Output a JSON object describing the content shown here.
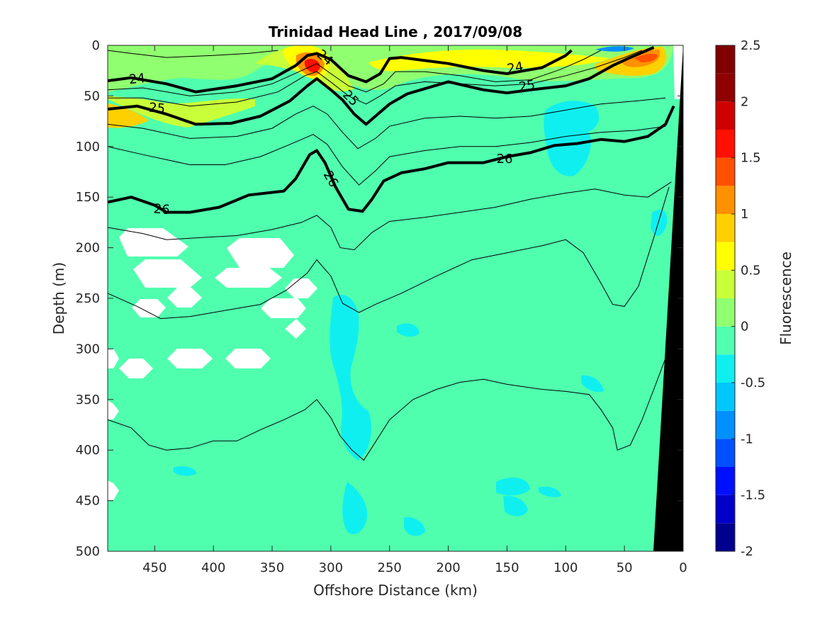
{
  "chart_data": {
    "type": "contour",
    "title": "Trinidad Head Line , 2017/09/08",
    "xlabel": "Offshore Distance (km)",
    "ylabel": "Depth (m)",
    "xlim": [
      490,
      0
    ],
    "ylim": [
      0,
      500
    ],
    "x_ticks": [
      "450",
      "400",
      "350",
      "300",
      "250",
      "200",
      "150",
      "100",
      "50",
      "0"
    ],
    "x_tick_values": [
      450,
      400,
      350,
      300,
      250,
      200,
      150,
      100,
      50,
      0
    ],
    "y_ticks": [
      "0",
      "50",
      "100",
      "150",
      "200",
      "250",
      "300",
      "350",
      "400",
      "450",
      "500"
    ],
    "y_tick_values": [
      0,
      50,
      100,
      150,
      200,
      250,
      300,
      350,
      400,
      450,
      500
    ],
    "colorbar": {
      "label": "Fluorescence",
      "tick_labels": [
        "2.5",
        "2",
        "1.5",
        "1",
        "0.5",
        "0",
        "-0.5",
        "-1",
        "-1.5",
        "-2"
      ],
      "tick_values": [
        2.5,
        2,
        1.5,
        1,
        0.5,
        0,
        -0.5,
        -1,
        -1.5,
        -2
      ],
      "levels": [
        -2,
        -1.75,
        -1.5,
        -1.25,
        -1,
        -0.75,
        -0.5,
        -0.25,
        0,
        0.25,
        0.5,
        0.75,
        1,
        1.25,
        1.5,
        1.75,
        2,
        2.25,
        2.5
      ],
      "colors": [
        "#00008f",
        "#0000c8",
        "#0010ff",
        "#0050ff",
        "#0090ff",
        "#00c8ff",
        "#10efef",
        "#50ffaf",
        "#90ff70",
        "#c8ff38",
        "#ffff00",
        "#ffd000",
        "#ff9000",
        "#ff5000",
        "#ff1000",
        "#d00000",
        "#900000",
        "#800000"
      ]
    },
    "background_level_color": "#4fffae",
    "isopycnals": [
      {
        "label": "24",
        "bold": true,
        "points": [
          [
            490,
            35
          ],
          [
            470,
            32
          ],
          [
            440,
            38
          ],
          [
            415,
            46
          ],
          [
            380,
            40
          ],
          [
            350,
            33
          ],
          [
            330,
            20
          ],
          [
            320,
            10
          ],
          [
            312,
            8
          ],
          [
            300,
            14
          ],
          [
            285,
            30
          ],
          [
            270,
            36
          ],
          [
            258,
            28
          ],
          [
            250,
            13
          ],
          [
            240,
            12
          ],
          [
            200,
            18
          ],
          [
            170,
            25
          ],
          [
            150,
            28
          ],
          [
            120,
            22
          ],
          [
            100,
            10
          ],
          [
            95,
            5
          ]
        ]
      },
      {
        "label": "25",
        "bold": true,
        "points": [
          [
            490,
            63
          ],
          [
            465,
            60
          ],
          [
            440,
            68
          ],
          [
            415,
            78
          ],
          [
            385,
            77
          ],
          [
            360,
            70
          ],
          [
            335,
            55
          ],
          [
            320,
            40
          ],
          [
            312,
            33
          ],
          [
            300,
            44
          ],
          [
            290,
            54
          ],
          [
            280,
            68
          ],
          [
            270,
            78
          ],
          [
            260,
            68
          ],
          [
            250,
            58
          ],
          [
            235,
            48
          ],
          [
            200,
            36
          ],
          [
            170,
            44
          ],
          [
            150,
            47
          ],
          [
            130,
            44
          ],
          [
            100,
            40
          ],
          [
            80,
            33
          ],
          [
            60,
            20
          ],
          [
            45,
            12
          ],
          [
            25,
            2
          ]
        ]
      },
      {
        "label": "26",
        "bold": true,
        "points": [
          [
            490,
            155
          ],
          [
            470,
            150
          ],
          [
            450,
            158
          ],
          [
            440,
            165
          ],
          [
            420,
            165
          ],
          [
            395,
            160
          ],
          [
            370,
            148
          ],
          [
            340,
            144
          ],
          [
            330,
            132
          ],
          [
            318,
            108
          ],
          [
            312,
            104
          ],
          [
            305,
            116
          ],
          [
            296,
            140
          ],
          [
            285,
            162
          ],
          [
            273,
            164
          ],
          [
            265,
            152
          ],
          [
            255,
            134
          ],
          [
            240,
            126
          ],
          [
            220,
            122
          ],
          [
            200,
            116
          ],
          [
            170,
            116
          ],
          [
            150,
            110
          ],
          [
            130,
            106
          ],
          [
            110,
            99
          ],
          [
            90,
            97
          ],
          [
            70,
            93
          ],
          [
            50,
            95
          ],
          [
            30,
            90
          ],
          [
            15,
            78
          ],
          [
            8,
            60
          ]
        ]
      }
    ],
    "thin_isopycnals": [
      [
        [
          490,
          5
        ],
        [
          470,
          8
        ],
        [
          440,
          12
        ],
        [
          400,
          10
        ],
        [
          370,
          8
        ],
        [
          345,
          5
        ]
      ],
      [
        [
          490,
          44
        ],
        [
          460,
          42
        ],
        [
          420,
          50
        ],
        [
          380,
          46
        ],
        [
          350,
          38
        ],
        [
          325,
          25
        ],
        [
          312,
          18
        ],
        [
          300,
          28
        ],
        [
          285,
          40
        ],
        [
          270,
          46
        ],
        [
          255,
          38
        ],
        [
          245,
          26
        ],
        [
          220,
          26
        ],
        [
          190,
          30
        ],
        [
          160,
          36
        ],
        [
          130,
          34
        ],
        [
          105,
          24
        ],
        [
          85,
          14
        ],
        [
          70,
          5
        ]
      ],
      [
        [
          490,
          52
        ],
        [
          460,
          52
        ],
        [
          420,
          60
        ],
        [
          380,
          56
        ],
        [
          345,
          46
        ],
        [
          322,
          30
        ],
        [
          312,
          26
        ],
        [
          298,
          38
        ],
        [
          285,
          50
        ],
        [
          270,
          58
        ],
        [
          258,
          50
        ],
        [
          245,
          40
        ],
        [
          220,
          36
        ],
        [
          190,
          38
        ],
        [
          160,
          40
        ],
        [
          130,
          38
        ],
        [
          100,
          30
        ],
        [
          75,
          22
        ],
        [
          50,
          12
        ],
        [
          35,
          5
        ]
      ],
      [
        [
          490,
          78
        ],
        [
          460,
          82
        ],
        [
          420,
          92
        ],
        [
          380,
          90
        ],
        [
          350,
          82
        ],
        [
          330,
          68
        ],
        [
          315,
          60
        ],
        [
          303,
          68
        ],
        [
          290,
          86
        ],
        [
          277,
          102
        ],
        [
          262,
          92
        ],
        [
          250,
          80
        ],
        [
          220,
          72
        ],
        [
          190,
          70
        ],
        [
          160,
          72
        ],
        [
          130,
          70
        ],
        [
          100,
          64
        ],
        [
          70,
          58
        ],
        [
          40,
          55
        ],
        [
          15,
          52
        ]
      ],
      [
        [
          490,
          100
        ],
        [
          460,
          108
        ],
        [
          420,
          118
        ],
        [
          390,
          118
        ],
        [
          360,
          110
        ],
        [
          335,
          98
        ],
        [
          315,
          88
        ],
        [
          303,
          98
        ],
        [
          290,
          120
        ],
        [
          276,
          138
        ],
        [
          262,
          124
        ],
        [
          250,
          110
        ],
        [
          220,
          104
        ],
        [
          190,
          100
        ],
        [
          160,
          100
        ],
        [
          130,
          96
        ],
        [
          100,
          90
        ],
        [
          70,
          86
        ],
        [
          40,
          84
        ],
        [
          15,
          80
        ]
      ],
      [
        [
          490,
          180
        ],
        [
          460,
          186
        ],
        [
          440,
          192
        ],
        [
          410,
          190
        ],
        [
          380,
          188
        ],
        [
          350,
          182
        ],
        [
          325,
          175
        ],
        [
          312,
          168
        ],
        [
          300,
          180
        ],
        [
          292,
          200
        ],
        [
          280,
          202
        ],
        [
          265,
          185
        ],
        [
          250,
          174
        ],
        [
          220,
          170
        ],
        [
          190,
          165
        ],
        [
          160,
          160
        ],
        [
          130,
          152
        ],
        [
          100,
          146
        ],
        [
          75,
          142
        ],
        [
          50,
          148
        ],
        [
          30,
          150
        ],
        [
          10,
          135
        ]
      ],
      [
        [
          490,
          245
        ],
        [
          465,
          258
        ],
        [
          445,
          270
        ],
        [
          420,
          268
        ],
        [
          390,
          262
        ],
        [
          360,
          256
        ],
        [
          338,
          242
        ],
        [
          320,
          225
        ],
        [
          312,
          212
        ],
        [
          300,
          228
        ],
        [
          290,
          255
        ],
        [
          276,
          264
        ],
        [
          262,
          256
        ],
        [
          240,
          245
        ],
        [
          210,
          228
        ],
        [
          180,
          212
        ],
        [
          150,
          205
        ],
        [
          120,
          198
        ],
        [
          100,
          192
        ],
        [
          85,
          205
        ],
        [
          70,
          235
        ],
        [
          60,
          256
        ],
        [
          50,
          258
        ],
        [
          38,
          238
        ],
        [
          25,
          190
        ],
        [
          12,
          140
        ]
      ],
      [
        [
          490,
          370
        ],
        [
          470,
          378
        ],
        [
          455,
          395
        ],
        [
          440,
          400
        ],
        [
          420,
          398
        ],
        [
          400,
          391
        ],
        [
          380,
          391
        ],
        [
          360,
          380
        ],
        [
          340,
          370
        ],
        [
          322,
          360
        ],
        [
          312,
          350
        ],
        [
          300,
          368
        ],
        [
          292,
          386
        ],
        [
          282,
          400
        ],
        [
          272,
          410
        ],
        [
          262,
          392
        ],
        [
          250,
          370
        ],
        [
          230,
          350
        ],
        [
          210,
          340
        ],
        [
          190,
          333
        ],
        [
          170,
          330
        ],
        [
          150,
          335
        ],
        [
          120,
          340
        ],
        [
          100,
          342
        ],
        [
          80,
          345
        ],
        [
          70,
          360
        ],
        [
          60,
          378
        ],
        [
          56,
          400
        ],
        [
          45,
          395
        ],
        [
          35,
          370
        ],
        [
          25,
          340
        ],
        [
          12,
          300
        ]
      ]
    ]
  }
}
